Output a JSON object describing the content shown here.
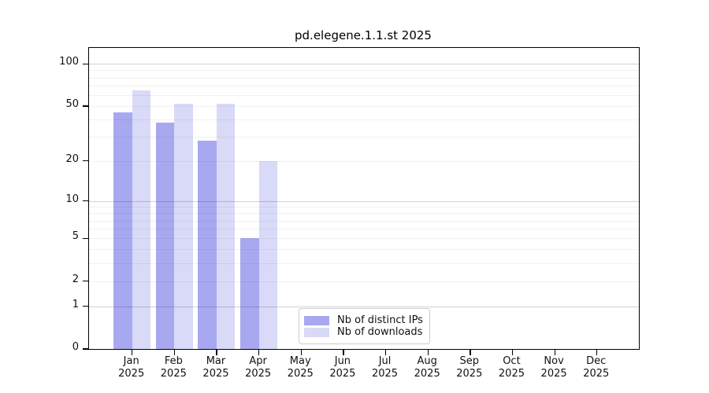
{
  "chart_data": {
    "type": "bar",
    "title": "pd.elegene.1.1.st 2025",
    "categories": [
      "Jan",
      "Feb",
      "Mar",
      "Apr",
      "May",
      "Jun",
      "Jul",
      "Aug",
      "Sep",
      "Oct",
      "Nov",
      "Dec"
    ],
    "tick_year": "2025",
    "series": [
      {
        "name": "Nb of distinct IPs",
        "color": "#a8a8f0",
        "values": [
          45,
          38,
          28,
          5,
          null,
          null,
          null,
          null,
          null,
          null,
          null,
          null
        ]
      },
      {
        "name": "Nb of downloads",
        "color": "#d9d9f8",
        "values": [
          65,
          52,
          52,
          20,
          null,
          null,
          null,
          null,
          null,
          null,
          null,
          null
        ]
      }
    ],
    "yscale": "log1p",
    "yticks": [
      0,
      1,
      2,
      5,
      10,
      20,
      50,
      100
    ],
    "ylim": [
      0,
      130
    ],
    "xlabel": "",
    "ylabel": "",
    "grid": "both",
    "legend_position": "lower center"
  },
  "colors": {
    "background": "#ffffff",
    "spine": "#000000",
    "grid_major": "rgba(0,0,0,0.18)",
    "grid_minor": "rgba(0,0,0,0.055)",
    "tick_label": "#111111",
    "legend_border": "#cccccc"
  }
}
